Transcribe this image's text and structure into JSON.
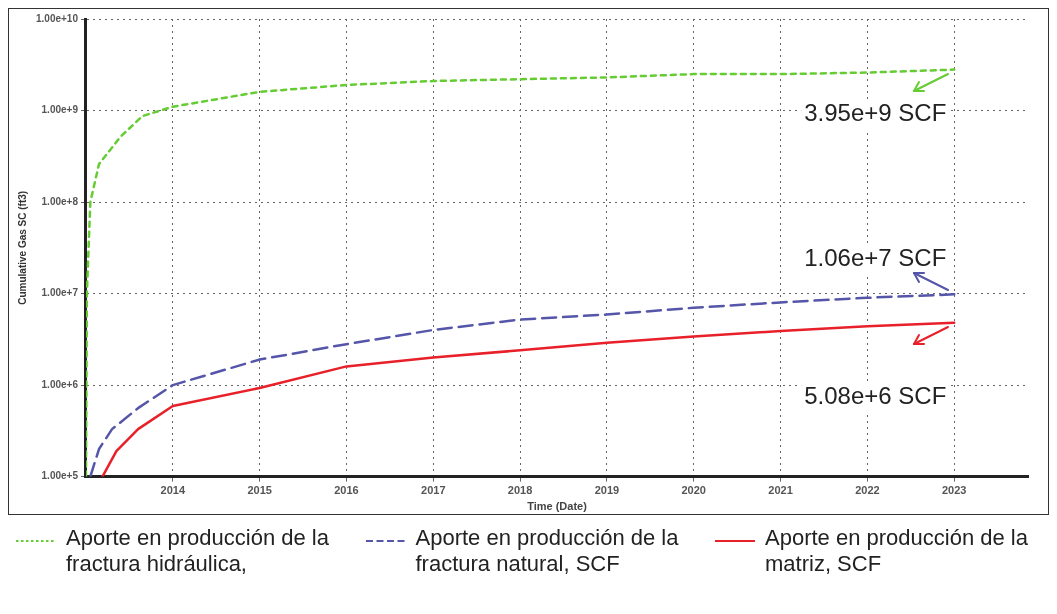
{
  "chart_data": {
    "type": "line",
    "xlabel": "Time (Date)",
    "ylabel": "Cumulative Gas SC (ft3)",
    "log": "y",
    "grid": true,
    "legend": "bottom",
    "marker": "none",
    "xlim": [
      2013,
      2023.85
    ],
    "xticks": [
      2014,
      2015,
      2016,
      2017,
      2018,
      2019,
      2020,
      2021,
      2022,
      2023
    ],
    "ylim": [
      100000,
      10000000000
    ],
    "yticks": [
      {
        "value": 100000,
        "label": "1.00e+5"
      },
      {
        "value": 1000000,
        "label": "1.00e+6"
      },
      {
        "value": 10000000,
        "label": "1.00e+7"
      },
      {
        "value": 100000000,
        "label": "1.00e+8"
      },
      {
        "value": 1000000000,
        "label": "1.00e+9"
      },
      {
        "value": 10000000000,
        "label": "1.00e+10"
      }
    ],
    "series": [
      {
        "name": "Aporte en producción de la fractura hidráulica,",
        "color": "#66cc33",
        "line_style": "dotted",
        "x": [
          2013,
          2013.01,
          2013.05,
          2013.15,
          2013.4,
          2013.65,
          2014,
          2015,
          2016,
          2017,
          2018,
          2019,
          2020,
          2021,
          2022,
          2023
        ],
        "values": [
          100000,
          10000000,
          100000000,
          260000000,
          520000000,
          870000000,
          1100000000,
          1600000000,
          1900000000,
          2100000000,
          2200000000,
          2300000000,
          2500000000,
          2500000000,
          2600000000,
          2800000000
        ]
      },
      {
        "name": "Aporte en producción de la fractura natural, SCF",
        "color": "#5555aa",
        "line_style": "dashed",
        "x": [
          2013.05,
          2013.15,
          2013.3,
          2013.6,
          2014,
          2015,
          2016,
          2017,
          2018,
          2019,
          2020,
          2021,
          2022,
          2023
        ],
        "values": [
          100000,
          200000,
          330000,
          560000,
          1000000,
          1900000,
          2800000,
          4000000,
          5200000,
          5900000,
          7000000,
          8000000,
          9000000,
          9800000
        ]
      },
      {
        "name": "Aporte en producción de la matriz, SCF",
        "color": "#e8202a",
        "line_style": "solid",
        "x": [
          2013.19,
          2013.35,
          2013.6,
          2014,
          2015,
          2016,
          2017,
          2018,
          2019,
          2020,
          2021,
          2022,
          2023
        ],
        "values": [
          100000,
          190000,
          330000,
          590000,
          930000,
          1600000,
          2000000,
          2400000,
          2900000,
          3400000,
          3900000,
          4400000,
          4800000
        ]
      }
    ],
    "annotations": [
      "3.95e+9 SCF",
      "1.06e+7 SCF",
      "5.08e+6 SCF"
    ]
  }
}
